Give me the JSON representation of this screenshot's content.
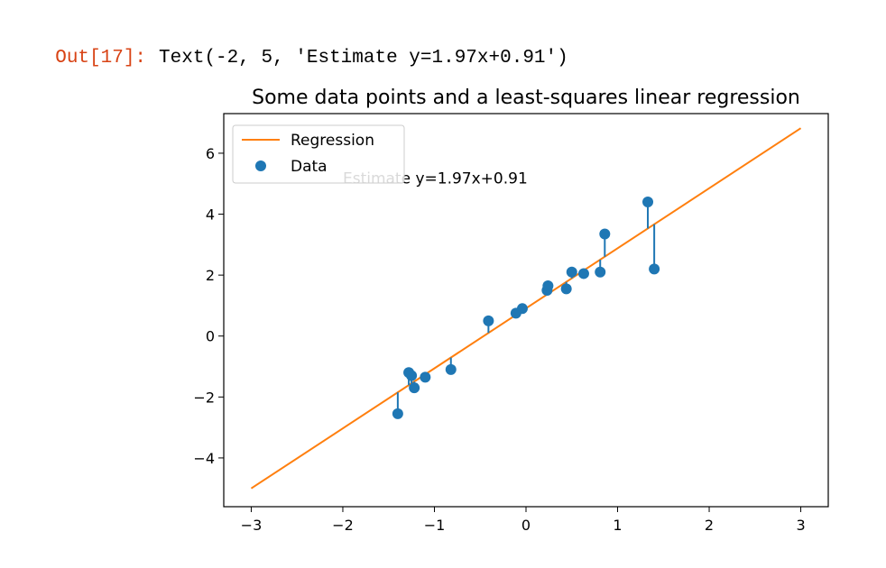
{
  "cell": {
    "prompt": "Out[17]:",
    "output": "Text(-2, 5, 'Estimate y=1.97x+0.91')"
  },
  "chart_data": {
    "type": "scatter",
    "title": "Some data points and a least-squares linear regression",
    "xlabel": "",
    "ylabel": "",
    "xlim": [
      -3.3,
      3.3
    ],
    "ylim": [
      -5.6,
      7.3
    ],
    "xticks": [
      -3,
      -2,
      -1,
      0,
      1,
      2,
      3
    ],
    "yticks": [
      -4,
      -2,
      0,
      2,
      4,
      6
    ],
    "xtick_labels": [
      "−3",
      "−2",
      "−1",
      "0",
      "1",
      "2",
      "3"
    ],
    "ytick_labels": [
      "−4",
      "−2",
      "0",
      "2",
      "4",
      "6"
    ],
    "grid": false,
    "legend": {
      "placement": "top-left",
      "entries": [
        {
          "label": "Regression",
          "marker": "line"
        },
        {
          "label": "Data",
          "marker": "dot"
        }
      ]
    },
    "regression": {
      "name": "Regression",
      "slope": 1.97,
      "intercept": 0.91,
      "x_range": [
        -3,
        3
      ],
      "color": "#ff7f0e"
    },
    "annotation": {
      "text": "Estimate y=1.97x+0.91",
      "x": -2,
      "y": 5
    },
    "series": [
      {
        "name": "Data",
        "color": "#1f77b4",
        "points": [
          [
            -1.4,
            -2.55
          ],
          [
            -1.28,
            -1.2
          ],
          [
            -1.25,
            -1.3
          ],
          [
            -1.22,
            -1.7
          ],
          [
            -1.1,
            -1.35
          ],
          [
            -0.82,
            -1.1
          ],
          [
            -0.41,
            0.5
          ],
          [
            -0.11,
            0.75
          ],
          [
            -0.04,
            0.9
          ],
          [
            0.23,
            1.5
          ],
          [
            0.24,
            1.65
          ],
          [
            0.44,
            1.55
          ],
          [
            0.5,
            2.1
          ],
          [
            0.63,
            2.05
          ],
          [
            0.81,
            2.1
          ],
          [
            0.86,
            3.35
          ],
          [
            1.33,
            4.4
          ],
          [
            1.4,
            2.2
          ]
        ]
      }
    ]
  }
}
